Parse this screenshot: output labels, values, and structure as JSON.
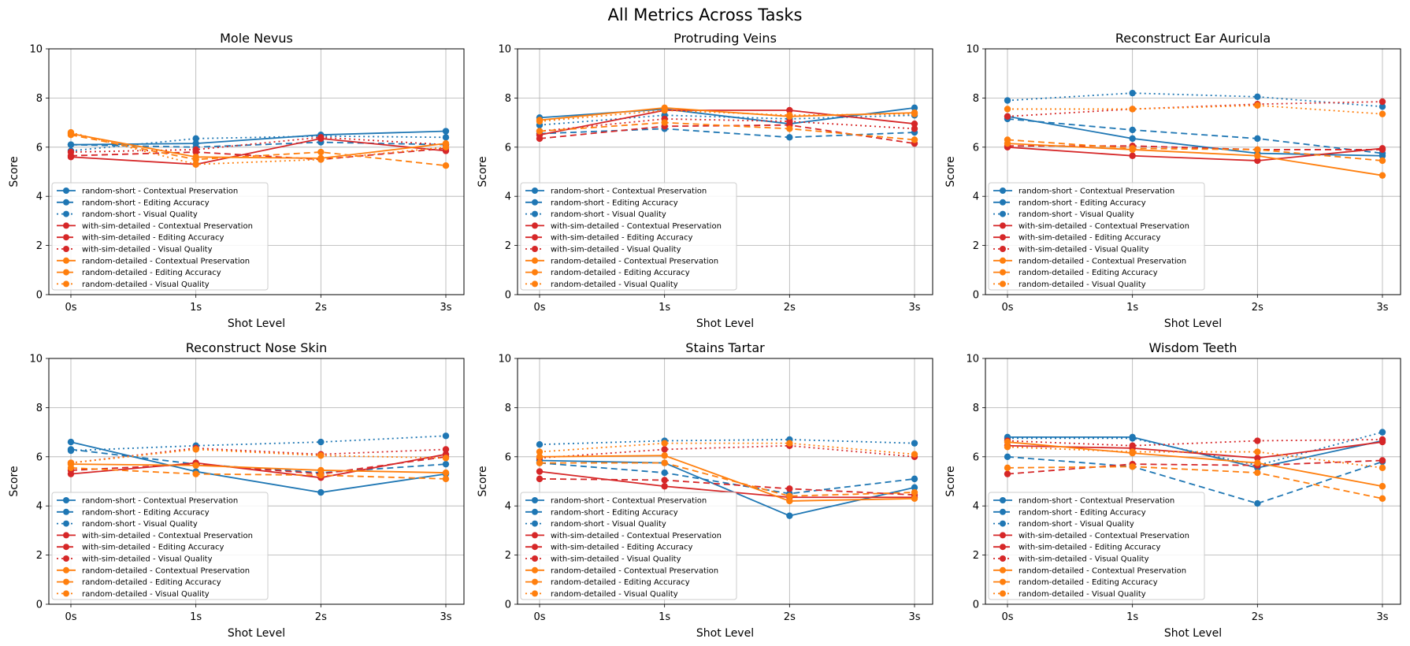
{
  "figure_title": "All Metrics Across Tasks",
  "colors": {
    "random-short": "#1f77b4",
    "with-sim-detailed": "#d62728",
    "random-detailed": "#ff7f0e",
    "grid": "#b0b0b0"
  },
  "metric_styles": {
    "Contextual Preservation": "solid",
    "Editing Accuracy": "dashed",
    "Visual Quality": "dotted"
  },
  "legend_entries": [
    {
      "label": "random-short - Contextual Preservation",
      "method": "random-short",
      "metric": "Contextual Preservation"
    },
    {
      "label": "random-short - Editing Accuracy",
      "method": "random-short",
      "metric": "Editing Accuracy"
    },
    {
      "label": "random-short - Visual Quality",
      "method": "random-short",
      "metric": "Visual Quality"
    },
    {
      "label": "with-sim-detailed - Contextual Preservation",
      "method": "with-sim-detailed",
      "metric": "Contextual Preservation"
    },
    {
      "label": "with-sim-detailed - Editing Accuracy",
      "method": "with-sim-detailed",
      "metric": "Editing Accuracy"
    },
    {
      "label": "with-sim-detailed - Visual Quality",
      "method": "with-sim-detailed",
      "metric": "Visual Quality"
    },
    {
      "label": "random-detailed - Contextual Preservation",
      "method": "random-detailed",
      "metric": "Contextual Preservation"
    },
    {
      "label": "random-detailed - Editing Accuracy",
      "method": "random-detailed",
      "metric": "Editing Accuracy"
    },
    {
      "label": "random-detailed - Visual Quality",
      "method": "random-detailed",
      "metric": "Visual Quality"
    }
  ],
  "chart_data": [
    {
      "type": "line",
      "title": "Mole Nevus",
      "xlabel": "Shot Level",
      "ylabel": "Score",
      "x": [
        "0s",
        "1s",
        "2s",
        "3s"
      ],
      "ylim": [
        0,
        10
      ],
      "yticks": [
        0,
        2,
        4,
        6,
        8,
        10
      ],
      "grid": true,
      "legend": "lower-left",
      "series": [
        {
          "name": "random-short - Contextual Preservation",
          "values": [
            6.1,
            6.15,
            6.5,
            6.65
          ]
        },
        {
          "name": "random-short - Editing Accuracy",
          "values": [
            6.1,
            6.0,
            6.2,
            6.1
          ]
        },
        {
          "name": "random-short - Visual Quality",
          "values": [
            5.85,
            6.35,
            6.45,
            6.4
          ]
        },
        {
          "name": "with-sim-detailed - Contextual Preservation",
          "values": [
            5.6,
            5.3,
            6.35,
            5.85
          ]
        },
        {
          "name": "with-sim-detailed - Editing Accuracy",
          "values": [
            5.65,
            5.8,
            5.5,
            5.95
          ]
        },
        {
          "name": "with-sim-detailed - Visual Quality",
          "values": [
            5.8,
            5.9,
            6.4,
            6.1
          ]
        },
        {
          "name": "random-detailed - Contextual Preservation",
          "values": [
            6.55,
            5.6,
            5.55,
            6.15
          ]
        },
        {
          "name": "random-detailed - Editing Accuracy",
          "values": [
            6.5,
            5.5,
            5.8,
            5.25
          ]
        },
        {
          "name": "random-detailed - Visual Quality",
          "values": [
            6.6,
            5.3,
            5.5,
            6.0
          ]
        }
      ]
    },
    {
      "type": "line",
      "title": "Protruding Veins",
      "xlabel": "Shot Level",
      "ylabel": "Score",
      "x": [
        "0s",
        "1s",
        "2s",
        "3s"
      ],
      "ylim": [
        0,
        10
      ],
      "yticks": [
        0,
        2,
        4,
        6,
        8,
        10
      ],
      "grid": true,
      "legend": "lower-left",
      "series": [
        {
          "name": "random-short - Contextual Preservation",
          "values": [
            7.2,
            7.55,
            6.95,
            7.6
          ]
        },
        {
          "name": "random-short - Editing Accuracy",
          "values": [
            6.55,
            6.75,
            6.4,
            6.6
          ]
        },
        {
          "name": "random-short - Visual Quality",
          "values": [
            6.9,
            7.3,
            7.15,
            7.3
          ]
        },
        {
          "name": "with-sim-detailed - Contextual Preservation",
          "values": [
            6.5,
            7.5,
            7.5,
            6.95
          ]
        },
        {
          "name": "with-sim-detailed - Editing Accuracy",
          "values": [
            6.35,
            6.85,
            6.9,
            6.15
          ]
        },
        {
          "name": "with-sim-detailed - Visual Quality",
          "values": [
            6.65,
            7.15,
            7.05,
            6.75
          ]
        },
        {
          "name": "random-detailed - Contextual Preservation",
          "values": [
            7.1,
            7.6,
            7.25,
            7.4
          ]
        },
        {
          "name": "random-detailed - Editing Accuracy",
          "values": [
            6.65,
            7.0,
            6.75,
            6.3
          ]
        },
        {
          "name": "random-detailed - Visual Quality",
          "values": [
            7.05,
            7.5,
            7.3,
            7.35
          ]
        }
      ]
    },
    {
      "type": "line",
      "title": "Reconstruct Ear Auricula",
      "xlabel": "Shot Level",
      "ylabel": "Score",
      "x": [
        "0s",
        "1s",
        "2s",
        "3s"
      ],
      "ylim": [
        0,
        10
      ],
      "yticks": [
        0,
        2,
        4,
        6,
        8,
        10
      ],
      "grid": true,
      "legend": "lower-left",
      "series": [
        {
          "name": "random-short - Contextual Preservation",
          "values": [
            7.25,
            6.35,
            5.75,
            5.65
          ]
        },
        {
          "name": "random-short - Editing Accuracy",
          "values": [
            7.15,
            6.7,
            6.35,
            5.75
          ]
        },
        {
          "name": "random-short - Visual Quality",
          "values": [
            7.9,
            8.2,
            8.05,
            7.65
          ]
        },
        {
          "name": "with-sim-detailed - Contextual Preservation",
          "values": [
            6.0,
            5.65,
            5.45,
            5.95
          ]
        },
        {
          "name": "with-sim-detailed - Editing Accuracy",
          "values": [
            6.05,
            6.05,
            5.9,
            5.9
          ]
        },
        {
          "name": "with-sim-detailed - Visual Quality",
          "values": [
            7.25,
            7.55,
            7.75,
            7.85
          ]
        },
        {
          "name": "random-detailed - Contextual Preservation",
          "values": [
            6.15,
            5.9,
            5.65,
            4.85
          ]
        },
        {
          "name": "random-detailed - Editing Accuracy",
          "values": [
            6.3,
            5.95,
            5.9,
            5.45
          ]
        },
        {
          "name": "random-detailed - Visual Quality",
          "values": [
            7.55,
            7.55,
            7.7,
            7.35
          ]
        }
      ]
    },
    {
      "type": "line",
      "title": "Reconstruct Nose Skin",
      "xlabel": "Shot Level",
      "ylabel": "Score",
      "x": [
        "0s",
        "1s",
        "2s",
        "3s"
      ],
      "ylim": [
        0,
        10
      ],
      "yticks": [
        0,
        2,
        4,
        6,
        8,
        10
      ],
      "grid": true,
      "legend": "lower-left",
      "series": [
        {
          "name": "random-short - Contextual Preservation",
          "values": [
            6.6,
            5.4,
            4.55,
            5.3
          ]
        },
        {
          "name": "random-short - Editing Accuracy",
          "values": [
            6.3,
            5.7,
            5.35,
            5.7
          ]
        },
        {
          "name": "random-short - Visual Quality",
          "values": [
            6.25,
            6.45,
            6.6,
            6.85
          ]
        },
        {
          "name": "with-sim-detailed - Contextual Preservation",
          "values": [
            5.3,
            5.75,
            5.15,
            6.1
          ]
        },
        {
          "name": "with-sim-detailed - Editing Accuracy",
          "values": [
            5.45,
            5.7,
            5.3,
            6.0
          ]
        },
        {
          "name": "with-sim-detailed - Visual Quality",
          "values": [
            5.75,
            6.35,
            6.1,
            6.3
          ]
        },
        {
          "name": "random-detailed - Contextual Preservation",
          "values": [
            5.7,
            5.65,
            5.45,
            5.35
          ]
        },
        {
          "name": "random-detailed - Editing Accuracy",
          "values": [
            5.55,
            5.3,
            5.25,
            5.1
          ]
        },
        {
          "name": "random-detailed - Visual Quality",
          "values": [
            5.75,
            6.3,
            6.05,
            5.95
          ]
        }
      ]
    },
    {
      "type": "line",
      "title": "Stains Tartar",
      "xlabel": "Shot Level",
      "ylabel": "Score",
      "x": [
        "0s",
        "1s",
        "2s",
        "3s"
      ],
      "ylim": [
        0,
        10
      ],
      "yticks": [
        0,
        2,
        4,
        6,
        8,
        10
      ],
      "grid": true,
      "legend": "lower-left",
      "series": [
        {
          "name": "random-short - Contextual Preservation",
          "values": [
            5.85,
            5.75,
            3.6,
            4.75
          ]
        },
        {
          "name": "random-short - Editing Accuracy",
          "values": [
            5.75,
            5.35,
            4.5,
            5.1
          ]
        },
        {
          "name": "random-short - Visual Quality",
          "values": [
            6.5,
            6.65,
            6.7,
            6.55
          ]
        },
        {
          "name": "with-sim-detailed - Contextual Preservation",
          "values": [
            5.4,
            4.8,
            4.35,
            4.35
          ]
        },
        {
          "name": "with-sim-detailed - Editing Accuracy",
          "values": [
            5.1,
            5.05,
            4.7,
            4.45
          ]
        },
        {
          "name": "with-sim-detailed - Visual Quality",
          "values": [
            5.95,
            6.3,
            6.45,
            6.0
          ]
        },
        {
          "name": "random-detailed - Contextual Preservation",
          "values": [
            6.0,
            6.05,
            4.2,
            4.3
          ]
        },
        {
          "name": "random-detailed - Editing Accuracy",
          "values": [
            5.75,
            5.75,
            4.4,
            4.55
          ]
        },
        {
          "name": "random-detailed - Visual Quality",
          "values": [
            6.2,
            6.55,
            6.55,
            6.1
          ]
        }
      ]
    },
    {
      "type": "line",
      "title": "Wisdom Teeth",
      "xlabel": "Shot Level",
      "ylabel": "Score",
      "x": [
        "0s",
        "1s",
        "2s",
        "3s"
      ],
      "ylim": [
        0,
        10
      ],
      "yticks": [
        0,
        2,
        4,
        6,
        8,
        10
      ],
      "grid": true,
      "legend": "lower-left",
      "series": [
        {
          "name": "random-short - Contextual Preservation",
          "values": [
            6.8,
            6.8,
            5.55,
            6.65
          ]
        },
        {
          "name": "random-short - Editing Accuracy",
          "values": [
            6.0,
            5.6,
            4.1,
            5.8
          ]
        },
        {
          "name": "random-short - Visual Quality",
          "values": [
            6.75,
            6.75,
            5.65,
            7.0
          ]
        },
        {
          "name": "with-sim-detailed - Contextual Preservation",
          "values": [
            6.45,
            6.35,
            5.95,
            6.6
          ]
        },
        {
          "name": "with-sim-detailed - Editing Accuracy",
          "values": [
            5.3,
            5.7,
            5.65,
            5.85
          ]
        },
        {
          "name": "with-sim-detailed - Visual Quality",
          "values": [
            6.65,
            6.45,
            6.65,
            6.7
          ]
        },
        {
          "name": "random-detailed - Contextual Preservation",
          "values": [
            6.6,
            6.15,
            5.75,
            4.8
          ]
        },
        {
          "name": "random-detailed - Editing Accuracy",
          "values": [
            5.55,
            5.6,
            5.35,
            4.3
          ]
        },
        {
          "name": "random-detailed - Visual Quality",
          "values": [
            6.4,
            6.2,
            6.2,
            5.55
          ]
        }
      ]
    }
  ]
}
